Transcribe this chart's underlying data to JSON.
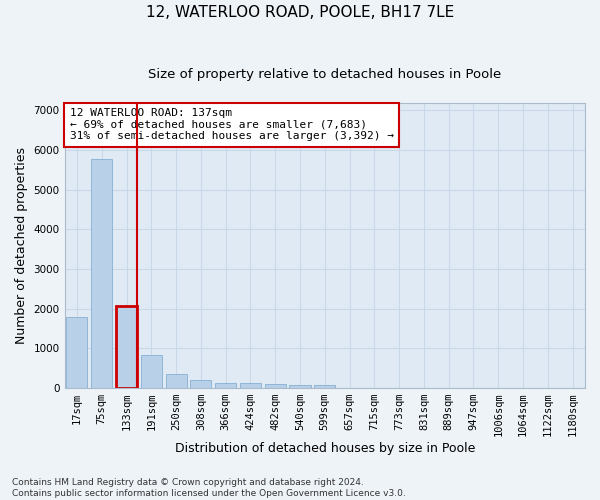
{
  "title_line1": "12, WATERLOO ROAD, POOLE, BH17 7LE",
  "title_line2": "Size of property relative to detached houses in Poole",
  "xlabel": "Distribution of detached houses by size in Poole",
  "ylabel": "Number of detached properties",
  "bar_labels": [
    "17sqm",
    "75sqm",
    "133sqm",
    "191sqm",
    "250sqm",
    "308sqm",
    "366sqm",
    "424sqm",
    "482sqm",
    "540sqm",
    "599sqm",
    "657sqm",
    "715sqm",
    "773sqm",
    "831sqm",
    "889sqm",
    "947sqm",
    "1006sqm",
    "1064sqm",
    "1122sqm",
    "1180sqm"
  ],
  "bar_values": [
    1780,
    5780,
    2060,
    820,
    340,
    200,
    130,
    110,
    100,
    80,
    60,
    0,
    0,
    0,
    0,
    0,
    0,
    0,
    0,
    0,
    0
  ],
  "bar_color": "#b8d0e8",
  "bar_edge_color": "#7aa8cc",
  "highlight_bar_index": 2,
  "highlight_color": "#cc0000",
  "annotation_text": "12 WATERLOO ROAD: 137sqm\n← 69% of detached houses are smaller (7,683)\n31% of semi-detached houses are larger (3,392) →",
  "ylim": [
    0,
    7200
  ],
  "yticks": [
    0,
    1000,
    2000,
    3000,
    4000,
    5000,
    6000,
    7000
  ],
  "grid_color": "#c8d8e8",
  "bg_color": "#eef3f8",
  "plot_bg_color": "#e0eaf4",
  "footnote": "Contains HM Land Registry data © Crown copyright and database right 2024.\nContains public sector information licensed under the Open Government Licence v3.0.",
  "title_fontsize": 11,
  "subtitle_fontsize": 9.5,
  "axis_label_fontsize": 9,
  "tick_fontsize": 7.5,
  "annotation_fontsize": 8
}
